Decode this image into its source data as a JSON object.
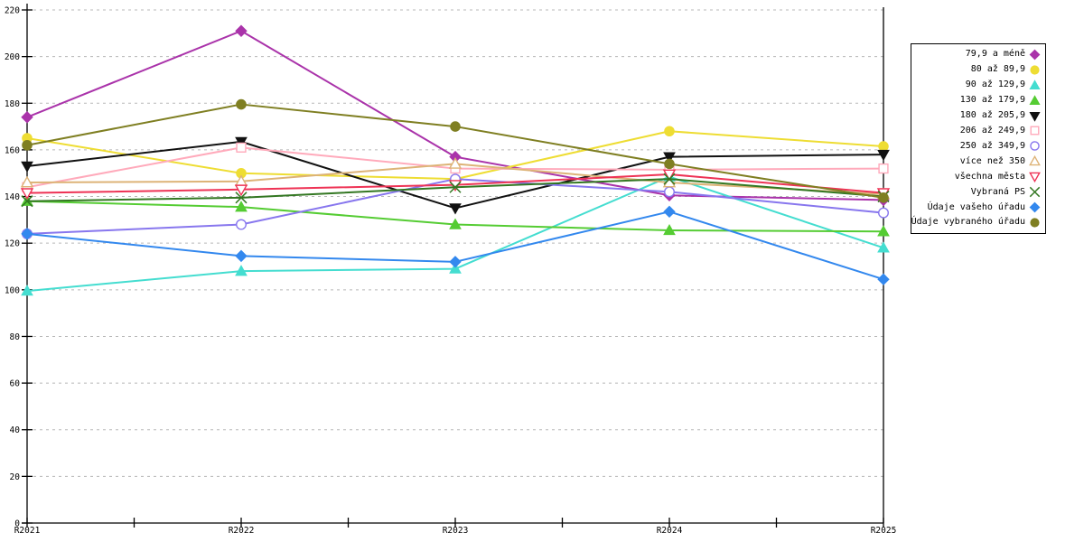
{
  "chart_data": {
    "type": "line",
    "title": "",
    "xlabel": "",
    "ylabel": "",
    "categories": [
      "R2021",
      "R2022",
      "R2023",
      "R2024",
      "R2025"
    ],
    "series": [
      {
        "name": "79,9 a méně",
        "marker": "diamond",
        "filled": true,
        "color": "#AA33AA",
        "values": [
          174,
          211,
          157,
          140.5,
          138.5
        ]
      },
      {
        "name": "80 až 89,9",
        "marker": "circle",
        "filled": true,
        "color": "#EEDD33",
        "values": [
          165,
          150,
          147.5,
          168,
          161.5
        ]
      },
      {
        "name": "90 až 129,9",
        "marker": "triangle-up",
        "filled": true,
        "color": "#44DDD0",
        "values": [
          99.5,
          108,
          109,
          148.5,
          118
        ]
      },
      {
        "name": "130 až 179,9",
        "marker": "triangle-up",
        "filled": true,
        "color": "#55CC33",
        "values": [
          138,
          135.5,
          128,
          125.5,
          125
        ]
      },
      {
        "name": "180 až 205,9",
        "marker": "triangle-down",
        "filled": true,
        "color": "#111111",
        "values": [
          153,
          163.5,
          135,
          157,
          158
        ]
      },
      {
        "name": "206 až 249,9",
        "marker": "square",
        "filled": false,
        "color": "#FFAABB",
        "values": [
          144,
          161,
          152,
          151.5,
          152
        ]
      },
      {
        "name": "250 až 349,9",
        "marker": "circle",
        "filled": false,
        "color": "#8877EE",
        "values": [
          124,
          128,
          147.5,
          142,
          133
        ]
      },
      {
        "name": "více než 350",
        "marker": "triangle-up",
        "filled": false,
        "color": "#DDB377",
        "values": [
          146,
          146.5,
          154,
          146,
          141
        ]
      },
      {
        "name": "všechna města",
        "marker": "triangle-down",
        "filled": false,
        "color": "#EE3355",
        "values": [
          141.5,
          143,
          145,
          149.5,
          141.5
        ]
      },
      {
        "name": "Vybraná PS",
        "marker": "x",
        "filled": false,
        "color": "#337722",
        "values": [
          138,
          139.5,
          144,
          147.5,
          140
        ]
      },
      {
        "name": "Údaje vašeho úřadu",
        "marker": "diamond",
        "filled": true,
        "color": "#3388EE",
        "values": [
          124,
          114.5,
          112,
          133.5,
          104.5
        ]
      },
      {
        "name": "Údaje vybraného úřadu",
        "marker": "circle",
        "filled": true,
        "color": "#7F7F22",
        "values": [
          162,
          179.5,
          170,
          154,
          139.5
        ]
      }
    ],
    "ylim": [
      0,
      220
    ],
    "ytick_step": 20,
    "y_tick_labels": [
      "0",
      "20",
      "40",
      "60",
      "80",
      "100",
      "120",
      "140",
      "160",
      "180",
      "200",
      "220"
    ],
    "grid": "horizontal-dashed",
    "legend_position": "right",
    "axis_color": "#000000",
    "grid_color": "#b8b8b8",
    "background": "#ffffff"
  }
}
